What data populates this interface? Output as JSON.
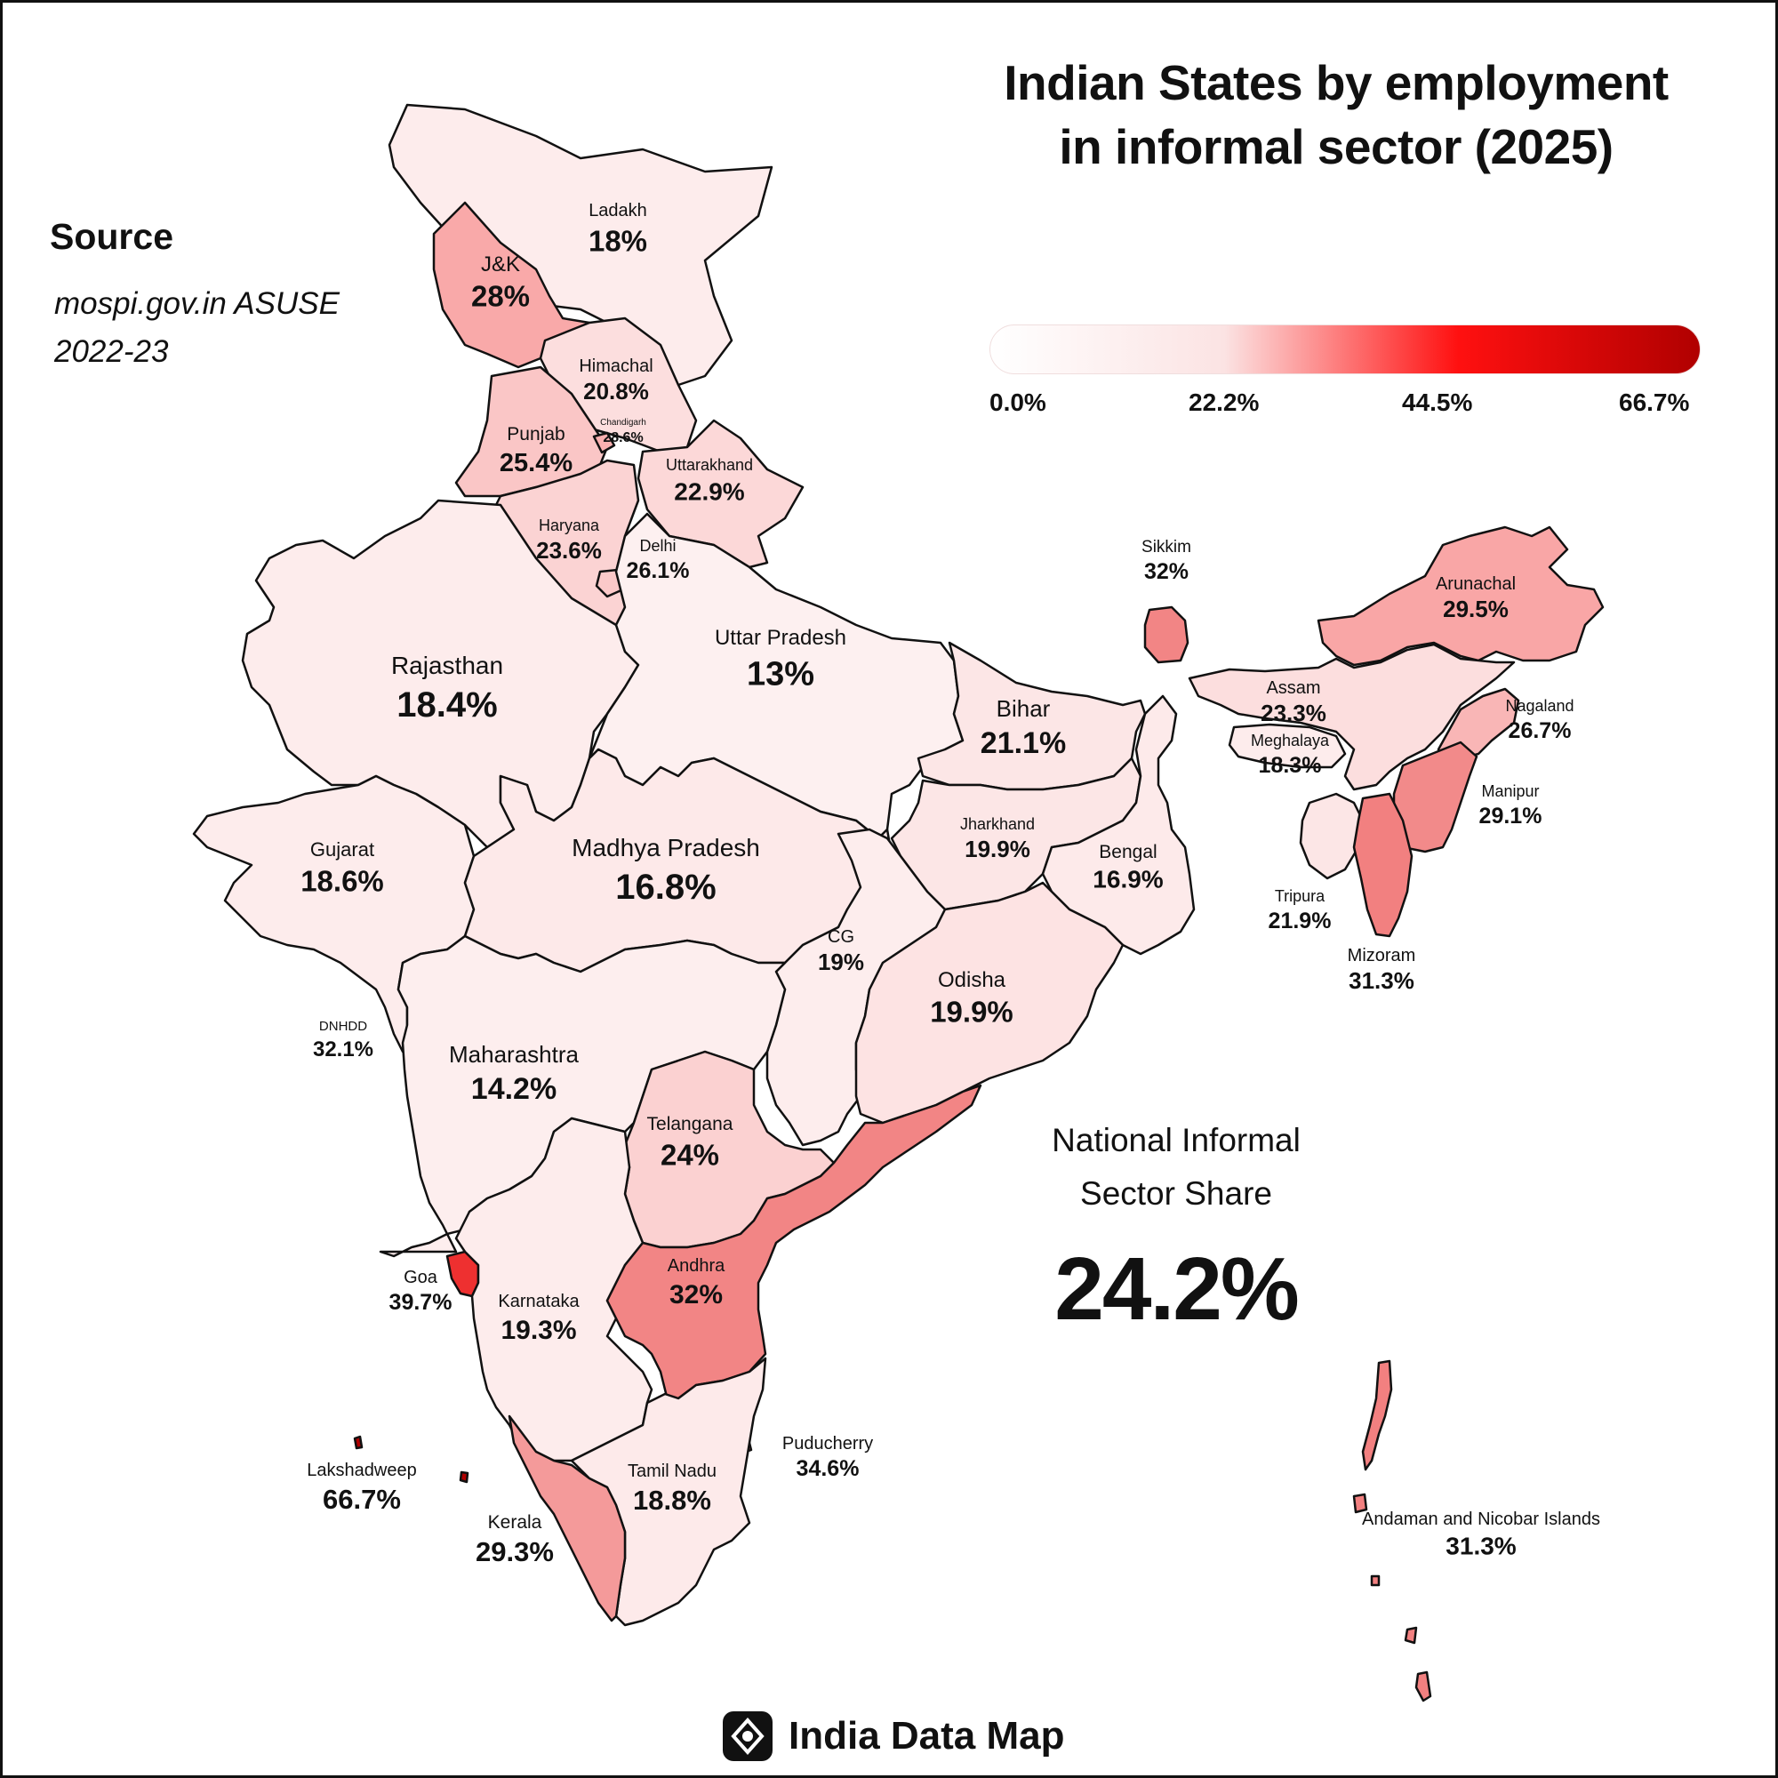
{
  "title": {
    "line1": "Indian States by employment",
    "line2": "in informal sector (2025)"
  },
  "source": {
    "heading": "Source",
    "line1": "mospi.gov.in ASUSE",
    "line2": "2022-23"
  },
  "legend": {
    "ticks": [
      "0.0%",
      "22.2%",
      "44.5%",
      "66.7%"
    ],
    "colors": [
      "#ffffff",
      "#fbe3e3",
      "#ff1010",
      "#b00000"
    ]
  },
  "national": {
    "line1": "National Informal",
    "line2": "Sector Share",
    "value": "24.2%"
  },
  "footer": {
    "brand": "India Data Map",
    "logo_icon": "map-pin-diamond-icon"
  },
  "colors": {
    "border": "#111111",
    "low": "#fdecec",
    "mid": "#f9b0b0",
    "high": "#f28080",
    "goa": "#ee3030"
  },
  "regions": [
    {
      "id": "ladakh",
      "name": "Ladakh",
      "value": "18%"
    },
    {
      "id": "jk",
      "name": "J&K",
      "value": "28%"
    },
    {
      "id": "himachal",
      "name": "Himachal",
      "value": "20.8%"
    },
    {
      "id": "chandigarh",
      "name": "Chandigarh",
      "value": "28.6%"
    },
    {
      "id": "punjab",
      "name": "Punjab",
      "value": "25.4%"
    },
    {
      "id": "uttarakhand",
      "name": "Uttarakhand",
      "value": "22.9%"
    },
    {
      "id": "haryana",
      "name": "Haryana",
      "value": "23.6%"
    },
    {
      "id": "delhi",
      "name": "Delhi",
      "value": "26.1%"
    },
    {
      "id": "rajasthan",
      "name": "Rajasthan",
      "value": "18.4%"
    },
    {
      "id": "up",
      "name": "Uttar Pradesh",
      "value": "13%"
    },
    {
      "id": "bihar",
      "name": "Bihar",
      "value": "21.1%"
    },
    {
      "id": "sikkim",
      "name": "Sikkim",
      "value": "32%"
    },
    {
      "id": "arunachal",
      "name": "Arunachal",
      "value": "29.5%"
    },
    {
      "id": "assam",
      "name": "Assam",
      "value": "23.3%"
    },
    {
      "id": "nagaland",
      "name": "Nagaland",
      "value": "26.7%"
    },
    {
      "id": "meghalaya",
      "name": "Meghalaya",
      "value": "18.3%"
    },
    {
      "id": "manipur",
      "name": "Manipur",
      "value": "29.1%"
    },
    {
      "id": "tripura",
      "name": "Tripura",
      "value": "21.9%"
    },
    {
      "id": "mizoram",
      "name": "Mizoram",
      "value": "31.3%"
    },
    {
      "id": "gujarat",
      "name": "Gujarat",
      "value": "18.6%"
    },
    {
      "id": "mp",
      "name": "Madhya Pradesh",
      "value": "16.8%"
    },
    {
      "id": "jharkhand",
      "name": "Jharkhand",
      "value": "19.9%"
    },
    {
      "id": "bengal",
      "name": "Bengal",
      "value": "16.9%"
    },
    {
      "id": "cg",
      "name": "CG",
      "value": "19%"
    },
    {
      "id": "odisha",
      "name": "Odisha",
      "value": "19.9%"
    },
    {
      "id": "dnhdd",
      "name": "DNHDD",
      "value": "32.1%"
    },
    {
      "id": "maharashtra",
      "name": "Maharashtra",
      "value": "14.2%"
    },
    {
      "id": "telangana",
      "name": "Telangana",
      "value": "24%"
    },
    {
      "id": "goa",
      "name": "Goa",
      "value": "39.7%"
    },
    {
      "id": "karnataka",
      "name": "Karnataka",
      "value": "19.3%"
    },
    {
      "id": "andhra",
      "name": "Andhra",
      "value": "32%"
    },
    {
      "id": "puducherry",
      "name": "Puducherry",
      "value": "34.6%"
    },
    {
      "id": "tamilnadu",
      "name": "Tamil Nadu",
      "value": "18.8%"
    },
    {
      "id": "lakshadweep",
      "name": "Lakshadweep",
      "value": "66.7%"
    },
    {
      "id": "kerala",
      "name": "Kerala",
      "value": "29.3%"
    },
    {
      "id": "andaman",
      "name": "Andaman and Nicobar Islands",
      "value": "31.3%"
    }
  ]
}
